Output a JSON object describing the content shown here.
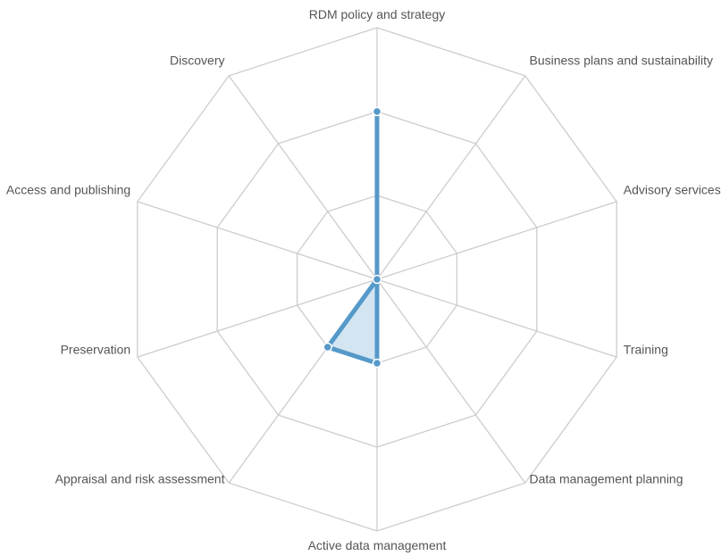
{
  "chart_data": {
    "type": "radar",
    "title": "",
    "categories": [
      "RDM policy and strategy",
      "Business plans and sustainability",
      "Advisory services",
      "Training",
      "Data management planning",
      "Active data management",
      "Appraisal and risk assessment",
      "Preservation",
      "Access and publishing",
      "Discovery"
    ],
    "series": [
      {
        "values": [
          2,
          0,
          0,
          0,
          0,
          1,
          1,
          0,
          0,
          0
        ]
      }
    ],
    "rmax": 3,
    "grid_levels": [
      1,
      2,
      3
    ],
    "grid": true,
    "legend": "none",
    "colors": {
      "line": "#5599c9",
      "fill": "#cfe2f1",
      "grid": "#cccccc",
      "label": "#555555"
    }
  }
}
